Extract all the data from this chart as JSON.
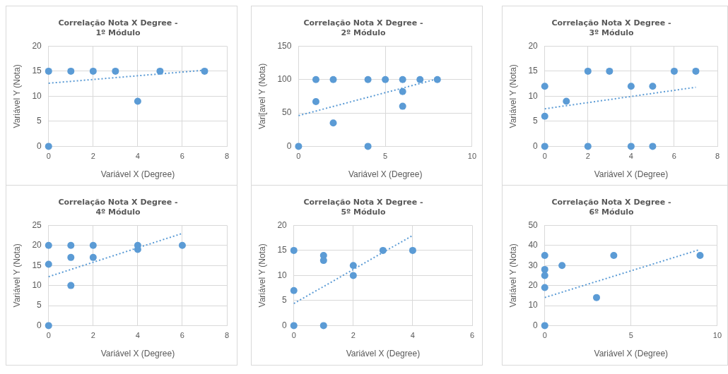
{
  "chart_data": [
    {
      "type": "scatter",
      "title": "Correlação Nota X Degree -\n1º Módulo",
      "xlabel": "Variável X (Degree)",
      "ylabel": "Variável Y (Nota)",
      "xlim": [
        0,
        8
      ],
      "xticks": [
        0,
        2,
        4,
        6,
        8
      ],
      "ylim": [
        0,
        20
      ],
      "yticks": [
        0,
        5,
        10,
        15,
        20
      ],
      "grid": true,
      "series": [
        {
          "type": "scatter",
          "marker": "circle",
          "color": "#5b9bd5",
          "x": [
            0,
            0,
            1,
            2,
            3,
            4,
            5,
            7
          ],
          "values": [
            15,
            0,
            15,
            15,
            15,
            9,
            15,
            15
          ]
        },
        {
          "type": "line",
          "marker": "none",
          "line_style": "dotted",
          "color": "#5b9bd5",
          "x": [
            0,
            7
          ],
          "values": [
            12.6,
            15.2
          ]
        }
      ]
    },
    {
      "type": "scatter",
      "title": "Correlação Nota X Degree -\n2º Módulo",
      "xlabel": "Variável X (Degree)",
      "ylabel": "Vari[avel Y (Nota)",
      "xlim": [
        0,
        10
      ],
      "xticks": [
        0,
        5,
        10
      ],
      "ylim": [
        0,
        150
      ],
      "yticks": [
        0,
        50,
        100,
        150
      ],
      "grid": true,
      "series": [
        {
          "type": "scatter",
          "marker": "circle",
          "color": "#5b9bd5",
          "x": [
            0,
            1,
            1,
            2,
            2,
            4,
            4,
            5,
            6,
            6,
            6,
            7,
            8
          ],
          "values": [
            0,
            100,
            67,
            100,
            35,
            100,
            0,
            100,
            100,
            82,
            60,
            100,
            100
          ]
        },
        {
          "type": "line",
          "marker": "none",
          "line_style": "dotted",
          "color": "#5b9bd5",
          "x": [
            0,
            8
          ],
          "values": [
            46,
            101
          ]
        }
      ]
    },
    {
      "type": "scatter",
      "title": "Correlação Nota X Degree -\n3º Módulo",
      "xlabel": "Variável X (Degree)",
      "ylabel": "Variável Y (Nota)",
      "xlim": [
        0,
        8
      ],
      "xticks": [
        0,
        2,
        4,
        6,
        8
      ],
      "ylim": [
        0,
        20
      ],
      "yticks": [
        0,
        5,
        10,
        15,
        20
      ],
      "grid": true,
      "series": [
        {
          "type": "scatter",
          "marker": "circle",
          "color": "#5b9bd5",
          "x": [
            0,
            0,
            0,
            1,
            2,
            2,
            3,
            4,
            4,
            5,
            5,
            6,
            7
          ],
          "values": [
            12,
            6,
            0,
            9,
            15,
            0,
            15,
            12,
            0,
            12,
            0,
            15,
            15
          ]
        },
        {
          "type": "line",
          "marker": "none",
          "line_style": "dotted",
          "color": "#5b9bd5",
          "x": [
            0,
            7
          ],
          "values": [
            7.5,
            11.8
          ]
        }
      ]
    },
    {
      "type": "scatter",
      "title": "Correlação Nota X Degree -\n4º Módulo",
      "xlabel": "Variável X (Degree)",
      "ylabel": "Variável Y (Nota)",
      "xlim": [
        0,
        8
      ],
      "xticks": [
        0,
        2,
        4,
        6,
        8
      ],
      "ylim": [
        0,
        25
      ],
      "yticks": [
        0,
        5,
        10,
        15,
        20,
        25
      ],
      "grid": true,
      "series": [
        {
          "type": "scatter",
          "marker": "circle",
          "color": "#5b9bd5",
          "x": [
            0,
            0,
            0,
            1,
            1,
            1,
            2,
            2,
            4,
            4,
            6
          ],
          "values": [
            20,
            15.3,
            0,
            20,
            17,
            10,
            20,
            17,
            20,
            19,
            20
          ]
        },
        {
          "type": "line",
          "marker": "none",
          "line_style": "dotted",
          "color": "#5b9bd5",
          "x": [
            0,
            6
          ],
          "values": [
            12.2,
            23
          ]
        }
      ]
    },
    {
      "type": "scatter",
      "title": "Correlação Nota X Degree -\n5º Módulo",
      "xlabel": "Variável X (Degree)",
      "ylabel": "Variável Y (Nota)",
      "xlim": [
        0,
        6
      ],
      "xticks": [
        0,
        2,
        4,
        6
      ],
      "ylim": [
        0,
        20
      ],
      "yticks": [
        0,
        5,
        10,
        15,
        20
      ],
      "grid": true,
      "series": [
        {
          "type": "scatter",
          "marker": "circle",
          "color": "#5b9bd5",
          "x": [
            0,
            0,
            0,
            1,
            1,
            1,
            2,
            2,
            3,
            4
          ],
          "values": [
            15,
            7,
            0,
            14,
            13,
            0,
            12,
            10,
            15,
            15
          ]
        },
        {
          "type": "line",
          "marker": "none",
          "line_style": "dotted",
          "color": "#5b9bd5",
          "x": [
            0,
            4
          ],
          "values": [
            4.4,
            18
          ]
        }
      ]
    },
    {
      "type": "scatter",
      "title": "Correlação Nota X Degree -\n6º Módulo",
      "xlabel": "Variável X (Degree)",
      "ylabel": "Variável Y (Nota)",
      "xlim": [
        0,
        10
      ],
      "xticks": [
        0,
        5,
        10
      ],
      "ylim": [
        0,
        50
      ],
      "yticks": [
        0,
        10,
        20,
        30,
        40,
        50
      ],
      "grid": true,
      "series": [
        {
          "type": "scatter",
          "marker": "circle",
          "color": "#5b9bd5",
          "x": [
            0,
            0,
            0,
            0,
            0,
            1,
            3,
            4,
            9
          ],
          "values": [
            35,
            28,
            25,
            19,
            0,
            30,
            14,
            35,
            35
          ]
        },
        {
          "type": "line",
          "marker": "none",
          "line_style": "dotted",
          "color": "#5b9bd5",
          "x": [
            0,
            9
          ],
          "values": [
            14,
            38
          ]
        }
      ]
    }
  ]
}
